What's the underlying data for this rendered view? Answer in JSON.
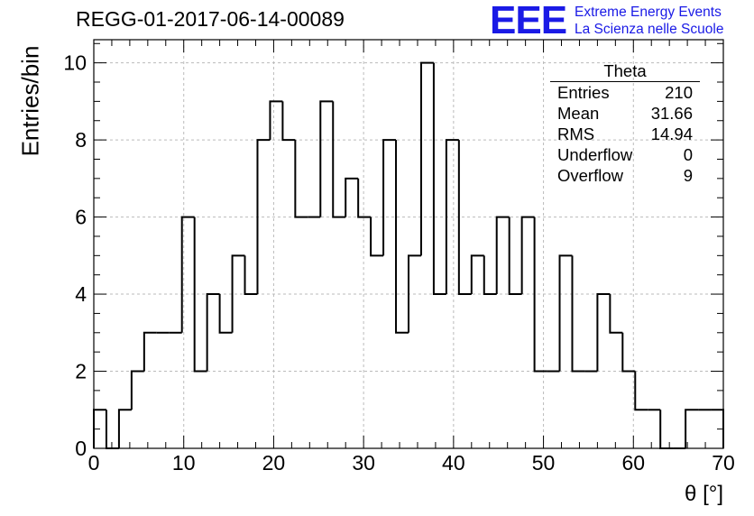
{
  "title": "REGG-01-2017-06-14-00089",
  "logo": {
    "mark": "EEE",
    "line1": "Extreme Energy Events",
    "line2": "La Scienza nelle Scuole",
    "color": "#1a1ae6"
  },
  "stats_box": {
    "title": "Theta",
    "rows": [
      {
        "label": "Entries",
        "value": "210"
      },
      {
        "label": "Mean",
        "value": "31.66"
      },
      {
        "label": "RMS",
        "value": "14.94"
      },
      {
        "label": "Underflow",
        "value": "0"
      },
      {
        "label": "Overflow",
        "value": "9"
      }
    ]
  },
  "chart_data": {
    "type": "bar",
    "histogram": true,
    "xlabel": "θ [°]",
    "ylabel": "Entries/bin",
    "xlim": [
      0,
      70
    ],
    "ylim": [
      0,
      10.6
    ],
    "bin_width": 1.4,
    "x_ticks": [
      0,
      10,
      20,
      30,
      40,
      50,
      60,
      70
    ],
    "y_ticks": [
      0,
      2,
      4,
      6,
      8,
      10
    ],
    "grid": true,
    "values": [
      1,
      0,
      1,
      2,
      3,
      3,
      3,
      6,
      2,
      4,
      3,
      5,
      4,
      8,
      9,
      8,
      6,
      6,
      9,
      6,
      7,
      6,
      5,
      8,
      3,
      5,
      10,
      4,
      8,
      4,
      5,
      4,
      6,
      4,
      6,
      2,
      2,
      5,
      2,
      2,
      4,
      3,
      2,
      1,
      1,
      0,
      0,
      1,
      1,
      1
    ],
    "line_color": "#000000"
  }
}
